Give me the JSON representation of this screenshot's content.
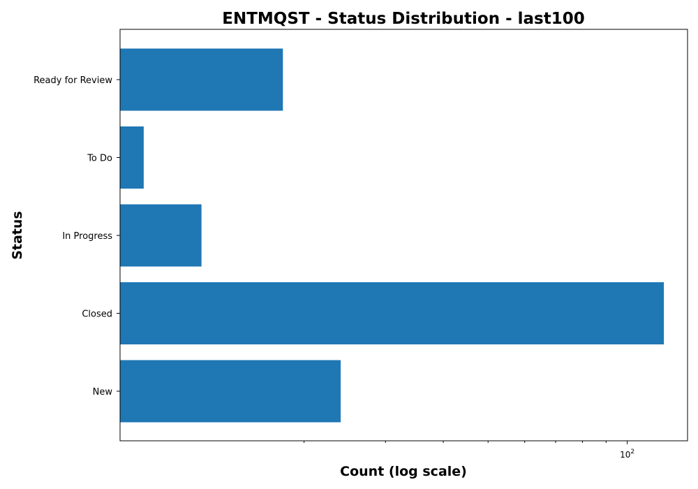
{
  "chart_data": {
    "type": "bar",
    "orientation": "horizontal",
    "title": "ENTMQST - Status Distribution - last100",
    "xlabel": "Count (log scale)",
    "ylabel": "Status",
    "x_scale": "log",
    "xlim": [
      8,
      135
    ],
    "categories": [
      "Ready for Review",
      "To Do",
      "In Progress",
      "Closed",
      "New"
    ],
    "values": [
      18,
      9,
      12,
      120,
      24
    ],
    "major_ticks": [
      {
        "value": 100,
        "base": "10",
        "exponent": "2"
      }
    ],
    "minor_ticks": [
      20,
      30,
      40,
      50,
      60,
      70,
      80,
      90
    ],
    "bar_color": "#1f77b4",
    "grid": false,
    "legend": "none"
  }
}
